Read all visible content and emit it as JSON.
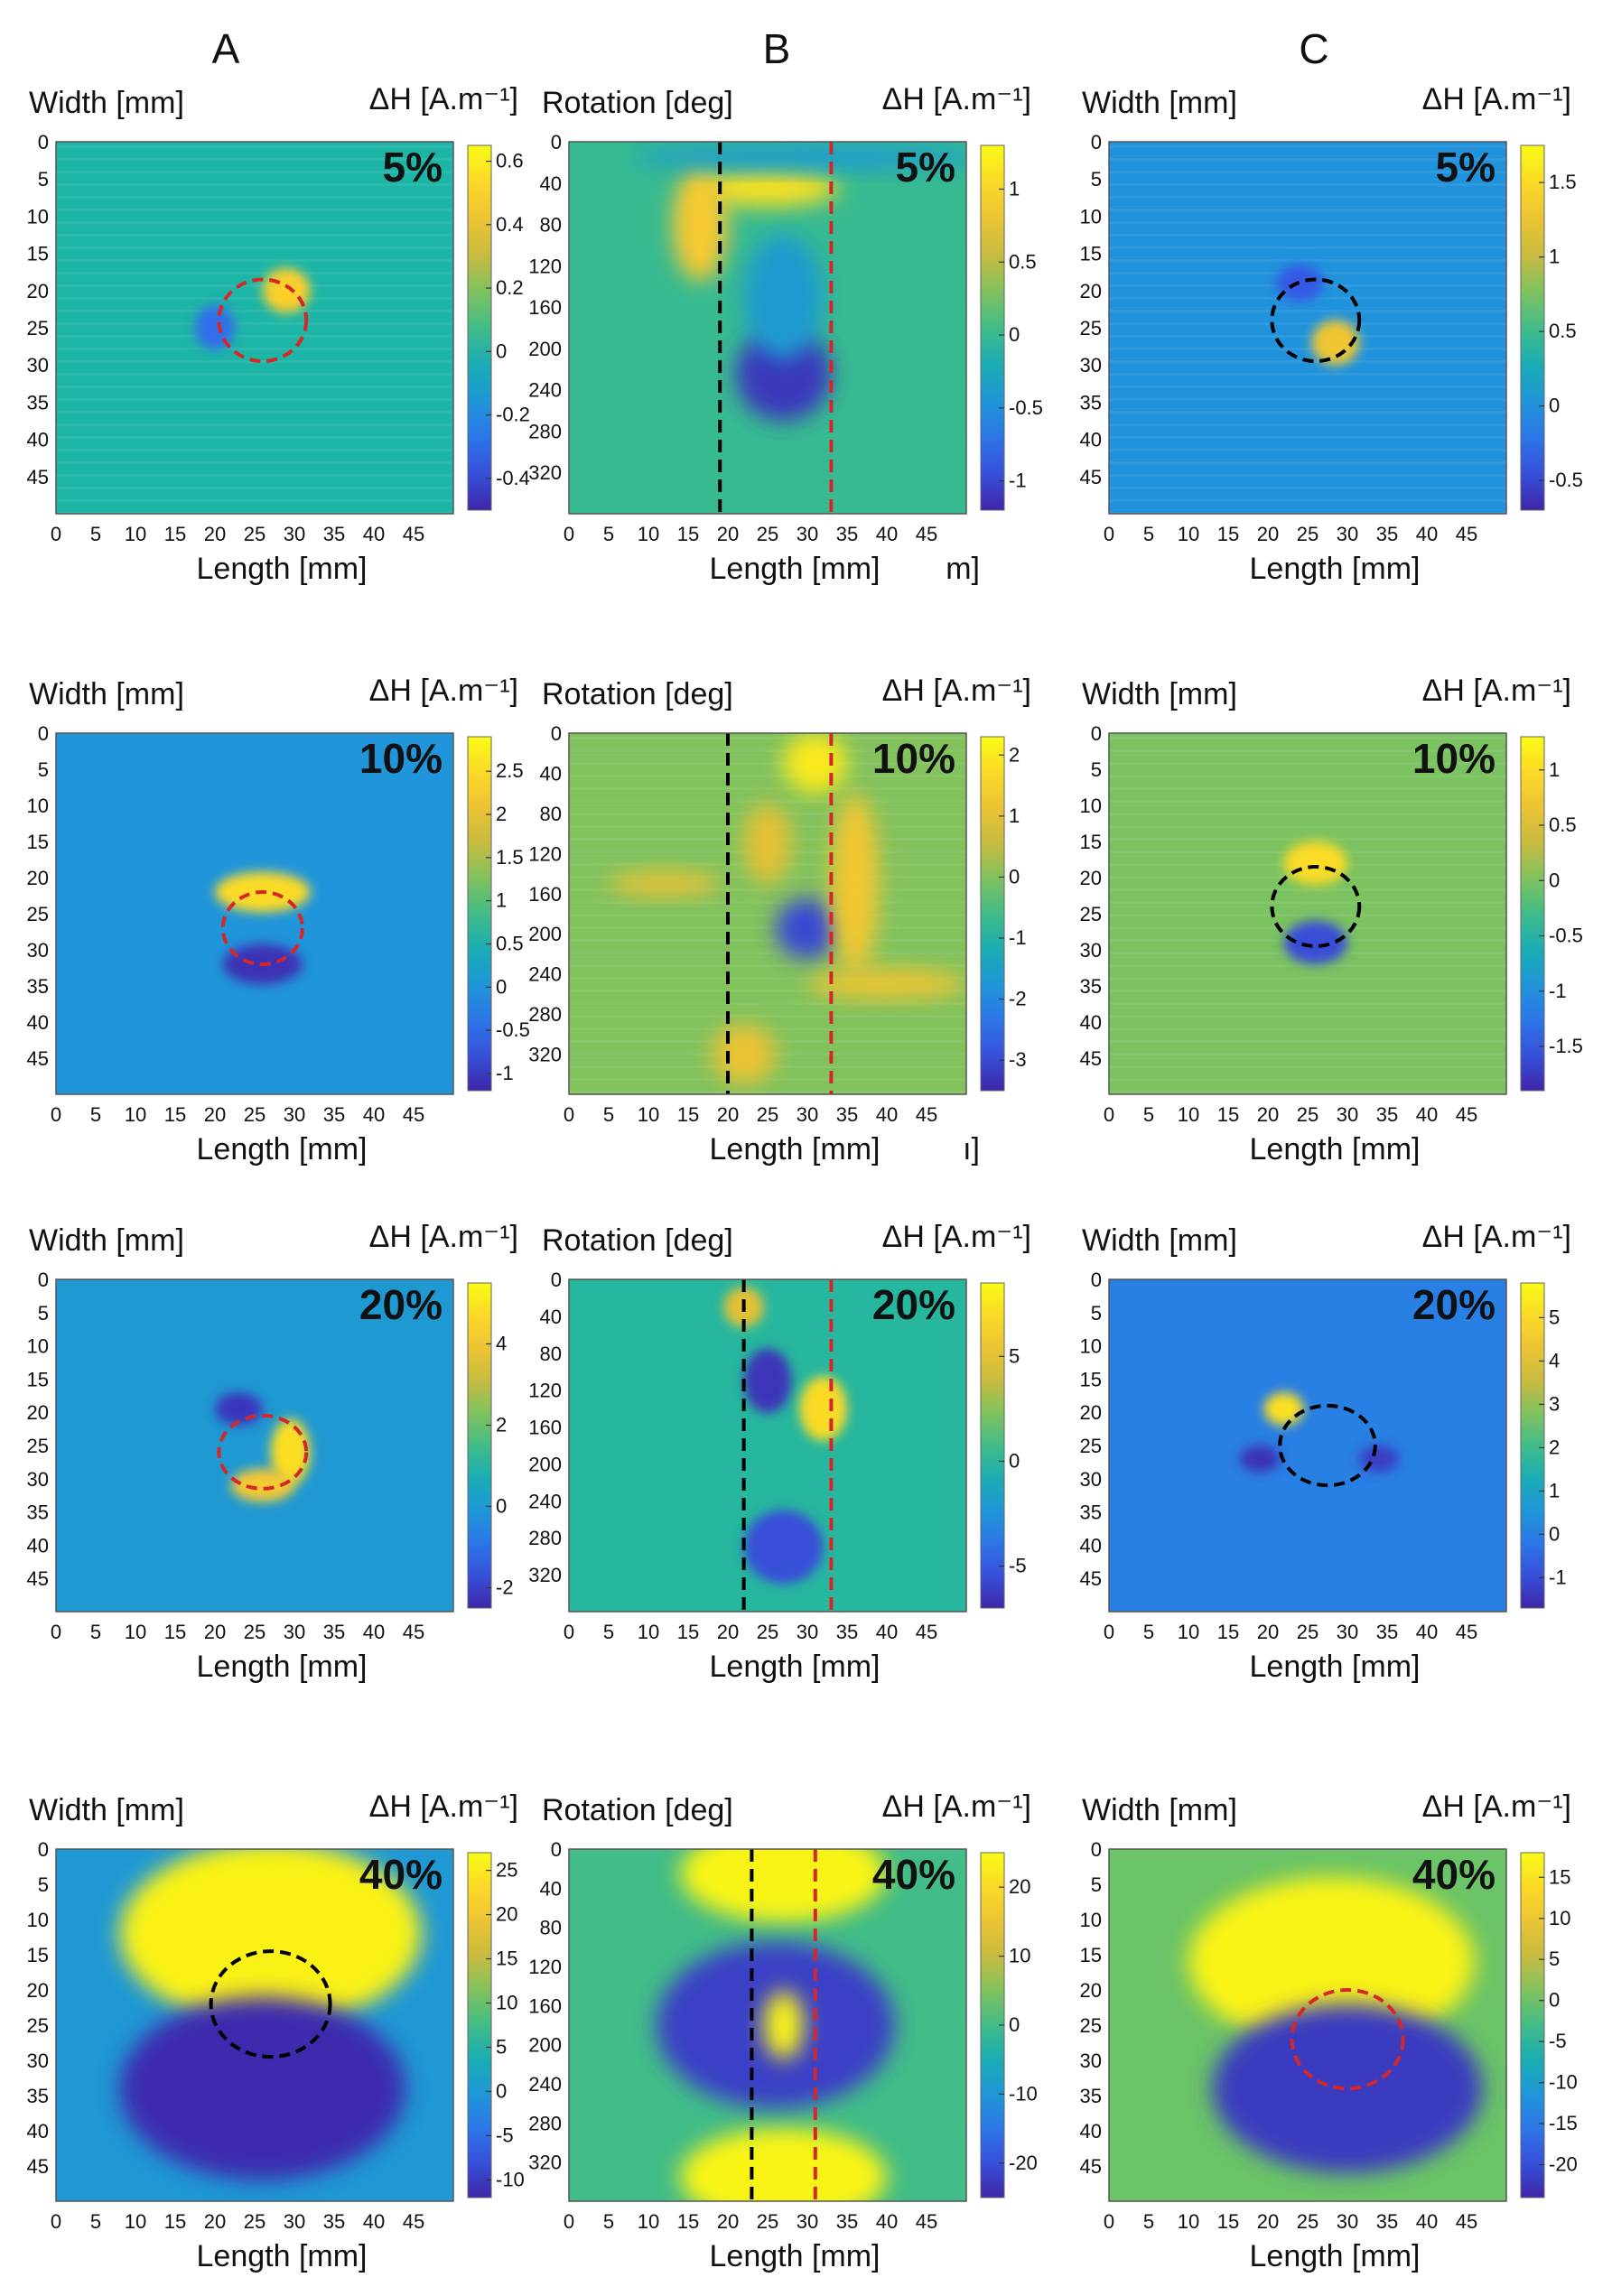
{
  "columns": [
    "A",
    "B",
    "C"
  ],
  "palette": {
    "low": "#3e26a8",
    "mid": "#1fb5a6",
    "high": "#f9fb15",
    "background_teal": "#2bb1a3",
    "circle_red": "#d62728",
    "circle_black": "#000000"
  },
  "chart_data": [
    {
      "type": "heatmap",
      "panel": "A-5%",
      "column": "A",
      "label": "5%",
      "ylabel": "Width [mm]",
      "xlabel": "Length [mm]",
      "cbar_label": "ΔH [A.m⁻¹]",
      "xticks": [
        "0",
        "5",
        "10",
        "15",
        "20",
        "25",
        "30",
        "35",
        "40",
        "45"
      ],
      "yticks": [
        "0",
        "5",
        "10",
        "15",
        "20",
        "25",
        "30",
        "35",
        "40",
        "45"
      ],
      "xlim": [
        0,
        50
      ],
      "ylim": [
        0,
        50
      ],
      "cbar_ticks": [
        "0.6",
        "0.4",
        "0.2",
        "0",
        "-0.2",
        "-0.4"
      ],
      "clim": [
        -0.5,
        0.65
      ],
      "defect_circle": {
        "x": 26,
        "y": 24,
        "r": 5.5,
        "color": "red"
      },
      "stripes": true,
      "blobs": [
        {
          "x": 29,
          "y": 20,
          "rx": 3,
          "ry": 3,
          "value": 0.5
        },
        {
          "x": 20,
          "y": 25,
          "rx": 2.5,
          "ry": 3,
          "value": -0.3
        }
      ]
    },
    {
      "type": "heatmap",
      "panel": "B-5%",
      "column": "B",
      "label": "5%",
      "ylabel": "Rotation [deg]",
      "xlabel": "Length [mm]",
      "xlabel_extra": "m]",
      "cbar_label": "ΔH [A.m⁻¹]",
      "xticks": [
        "0",
        "5",
        "10",
        "15",
        "20",
        "25",
        "30",
        "35",
        "40",
        "45"
      ],
      "yticks": [
        "0",
        "40",
        "80",
        "120",
        "160",
        "200",
        "240",
        "280",
        "320"
      ],
      "xlim": [
        0,
        50
      ],
      "ylim": [
        0,
        360
      ],
      "cbar_ticks": [
        "1",
        "0.5",
        "0",
        "-0.5",
        "-1"
      ],
      "clim": [
        -1.2,
        1.3
      ],
      "vlines": [
        {
          "x": 19,
          "color": "black"
        },
        {
          "x": 33,
          "color": "red"
        }
      ],
      "blobs": [
        {
          "x": 25,
          "y": 45,
          "rx": 9,
          "ry": 18,
          "value": 1.1
        },
        {
          "x": 16.5,
          "y": 80,
          "rx": 3.5,
          "ry": 55,
          "value": 0.9
        },
        {
          "x": 27,
          "y": 225,
          "rx": 6,
          "ry": 45,
          "value": -1.1
        },
        {
          "x": 27,
          "y": 150,
          "rx": 5,
          "ry": 60,
          "value": -0.4
        },
        {
          "x": 30,
          "y": 15,
          "rx": 22,
          "ry": 12,
          "value": -0.4
        }
      ]
    },
    {
      "type": "heatmap",
      "panel": "C-5%",
      "column": "C",
      "label": "5%",
      "ylabel": "Width [mm]",
      "xlabel": "Length [mm]",
      "cbar_label": "ΔH [A.m⁻¹]",
      "xticks": [
        "0",
        "5",
        "10",
        "15",
        "20",
        "25",
        "30",
        "35",
        "40",
        "45"
      ],
      "yticks": [
        "0",
        "5",
        "10",
        "15",
        "20",
        "25",
        "30",
        "35",
        "40",
        "45"
      ],
      "xlim": [
        0,
        50
      ],
      "ylim": [
        0,
        50
      ],
      "cbar_ticks": [
        "1.5",
        "1",
        "0.5",
        "0",
        "-0.5"
      ],
      "clim": [
        -0.7,
        1.75
      ],
      "defect_circle": {
        "x": 26,
        "y": 24,
        "r": 5.5,
        "color": "black"
      },
      "stripes": true,
      "blobs": [
        {
          "x": 28.5,
          "y": 27,
          "rx": 3,
          "ry": 3,
          "value": 1.3
        },
        {
          "x": 24,
          "y": 19,
          "rx": 3,
          "ry": 2.5,
          "value": -0.4
        }
      ]
    },
    {
      "type": "heatmap",
      "panel": "A-10%",
      "column": "A",
      "label": "10%",
      "ylabel": "Width [mm]",
      "xlabel": "Length [mm]",
      "cbar_label": "ΔH [A.m⁻¹]",
      "xticks": [
        "0",
        "5",
        "10",
        "15",
        "20",
        "25",
        "30",
        "35",
        "40",
        "45"
      ],
      "yticks": [
        "0",
        "5",
        "10",
        "15",
        "20",
        "25",
        "30",
        "35",
        "40",
        "45"
      ],
      "xlim": [
        0,
        50
      ],
      "ylim": [
        0,
        50
      ],
      "cbar_ticks": [
        "2.5",
        "2",
        "1.5",
        "1",
        "0.5",
        "0",
        "-0.5",
        "-1"
      ],
      "clim": [
        -1.2,
        2.9
      ],
      "defect_circle": {
        "x": 26,
        "y": 27,
        "r": 5,
        "color": "red"
      },
      "blobs": [
        {
          "x": 26,
          "y": 22,
          "rx": 6,
          "ry": 2.8,
          "value": 2.5
        },
        {
          "x": 26,
          "y": 32,
          "rx": 5,
          "ry": 2.8,
          "value": -1.1
        }
      ]
    },
    {
      "type": "heatmap",
      "panel": "B-10%",
      "column": "B",
      "label": "10%",
      "ylabel": "Rotation [deg]",
      "xlabel": "Length [mm]",
      "xlabel_extra": "ı]",
      "cbar_label": "ΔH [A.m⁻¹]",
      "xticks": [
        "0",
        "5",
        "10",
        "15",
        "20",
        "25",
        "30",
        "35",
        "40",
        "45"
      ],
      "yticks": [
        "0",
        "40",
        "80",
        "120",
        "160",
        "200",
        "240",
        "280",
        "320"
      ],
      "xlim": [
        0,
        50
      ],
      "ylim": [
        0,
        360
      ],
      "cbar_ticks": [
        "2",
        "1",
        "0",
        "-1",
        "-2",
        "-3"
      ],
      "clim": [
        -3.5,
        2.3
      ],
      "vlines": [
        {
          "x": 20,
          "color": "black"
        },
        {
          "x": 33,
          "color": "red"
        }
      ],
      "stripes": true,
      "blobs": [
        {
          "x": 31,
          "y": 30,
          "rx": 4,
          "ry": 30,
          "value": 2.0
        },
        {
          "x": 30,
          "y": 195,
          "rx": 4,
          "ry": 30,
          "value": -3.0
        },
        {
          "x": 36,
          "y": 150,
          "rx": 3,
          "ry": 90,
          "value": 1.3
        },
        {
          "x": 25,
          "y": 110,
          "rx": 3,
          "ry": 40,
          "value": 1.0
        },
        {
          "x": 12,
          "y": 150,
          "rx": 7,
          "ry": 12,
          "value": 1.1
        },
        {
          "x": 40,
          "y": 250,
          "rx": 10,
          "ry": 15,
          "value": 1.2
        },
        {
          "x": 22,
          "y": 320,
          "rx": 4,
          "ry": 30,
          "value": 1.1
        }
      ]
    },
    {
      "type": "heatmap",
      "panel": "C-10%",
      "column": "C",
      "label": "10%",
      "ylabel": "Width [mm]",
      "xlabel": "Length [mm]",
      "cbar_label": "ΔH [A.m⁻¹]",
      "xticks": [
        "0",
        "5",
        "10",
        "15",
        "20",
        "25",
        "30",
        "35",
        "40",
        "45"
      ],
      "yticks": [
        "0",
        "5",
        "10",
        "15",
        "20",
        "25",
        "30",
        "35",
        "40",
        "45"
      ],
      "xlim": [
        0,
        50
      ],
      "ylim": [
        0,
        50
      ],
      "cbar_ticks": [
        "1",
        "0.5",
        "0",
        "-0.5",
        "-1",
        "-1.5"
      ],
      "clim": [
        -1.9,
        1.3
      ],
      "defect_circle": {
        "x": 26,
        "y": 24,
        "r": 5.5,
        "color": "black"
      },
      "stripes": true,
      "blobs": [
        {
          "x": 26,
          "y": 18,
          "rx": 4,
          "ry": 3,
          "value": 1.0
        },
        {
          "x": 26,
          "y": 29,
          "rx": 4,
          "ry": 3,
          "value": -1.6
        }
      ]
    },
    {
      "type": "heatmap",
      "panel": "A-20%",
      "column": "A",
      "label": "20%",
      "ylabel": "Width [mm]",
      "xlabel": "Length [mm]",
      "cbar_label": "ΔH [A.m⁻¹]",
      "xticks": [
        "0",
        "5",
        "10",
        "15",
        "20",
        "25",
        "30",
        "35",
        "40",
        "45"
      ],
      "yticks": [
        "0",
        "5",
        "10",
        "15",
        "20",
        "25",
        "30",
        "35",
        "40",
        "45"
      ],
      "xlim": [
        0,
        50
      ],
      "ylim": [
        0,
        50
      ],
      "cbar_ticks": [
        "4",
        "2",
        "0",
        "-2"
      ],
      "clim": [
        -2.5,
        5.5
      ],
      "defect_circle": {
        "x": 26,
        "y": 26,
        "r": 5.5,
        "color": "red"
      },
      "blobs": [
        {
          "x": 29.5,
          "y": 26,
          "rx": 2.5,
          "ry": 5,
          "value": 4.8
        },
        {
          "x": 26,
          "y": 31,
          "rx": 4,
          "ry": 2.5,
          "value": 4.2
        },
        {
          "x": 23,
          "y": 19.5,
          "rx": 3,
          "ry": 2.5,
          "value": -2.2
        }
      ]
    },
    {
      "type": "heatmap",
      "panel": "B-20%",
      "column": "B",
      "label": "20%",
      "ylabel": "Rotation [deg]",
      "xlabel": "Length [mm]",
      "cbar_label": "ΔH [A.m⁻¹]",
      "xticks": [
        "0",
        "5",
        "10",
        "15",
        "20",
        "25",
        "30",
        "35",
        "40",
        "45"
      ],
      "yticks": [
        "0",
        "40",
        "80",
        "120",
        "160",
        "200",
        "240",
        "280",
        "320"
      ],
      "xlim": [
        0,
        50
      ],
      "ylim": [
        0,
        360
      ],
      "cbar_ticks": [
        "5",
        "0",
        "-5"
      ],
      "clim": [
        -7,
        8.5
      ],
      "vlines": [
        {
          "x": 22,
          "color": "black"
        },
        {
          "x": 33,
          "color": "red"
        }
      ],
      "blobs": [
        {
          "x": 22,
          "y": 30,
          "rx": 2.5,
          "ry": 22,
          "value": 5
        },
        {
          "x": 25,
          "y": 110,
          "rx": 3,
          "ry": 35,
          "value": -6.5
        },
        {
          "x": 32,
          "y": 140,
          "rx": 3,
          "ry": 35,
          "value": 7
        },
        {
          "x": 27,
          "y": 290,
          "rx": 5,
          "ry": 40,
          "value": -5.5
        }
      ]
    },
    {
      "type": "heatmap",
      "panel": "C-20%",
      "column": "C",
      "label": "20%",
      "ylabel": "Width [mm]",
      "xlabel": "Length [mm]",
      "cbar_label": "ΔH [A.m⁻¹]",
      "xticks": [
        "0",
        "5",
        "10",
        "15",
        "20",
        "25",
        "30",
        "35",
        "40",
        "45"
      ],
      "yticks": [
        "0",
        "5",
        "10",
        "15",
        "20",
        "25",
        "30",
        "35",
        "40",
        "45"
      ],
      "xlim": [
        0,
        50
      ],
      "ylim": [
        0,
        50
      ],
      "cbar_ticks": [
        "5",
        "4",
        "3",
        "2",
        "1",
        "0",
        "-1"
      ],
      "clim": [
        -1.7,
        5.8
      ],
      "defect_circle": {
        "x": 27.5,
        "y": 25,
        "r": 6,
        "color": "black"
      },
      "blobs": [
        {
          "x": 22,
          "y": 19.5,
          "rx": 2.5,
          "ry": 2.5,
          "value": 5.2
        },
        {
          "x": 19,
          "y": 27,
          "rx": 2.5,
          "ry": 2,
          "value": -1.5
        },
        {
          "x": 34,
          "y": 27,
          "rx": 2.5,
          "ry": 2,
          "value": -1.3
        }
      ]
    },
    {
      "type": "heatmap",
      "panel": "A-40%",
      "column": "A",
      "label": "40%",
      "ylabel": "Width [mm]",
      "xlabel": "Length [mm]",
      "cbar_label": "ΔH [A.m⁻¹]",
      "xticks": [
        "0",
        "5",
        "10",
        "15",
        "20",
        "25",
        "30",
        "35",
        "40",
        "45"
      ],
      "yticks": [
        "0",
        "5",
        "10",
        "15",
        "20",
        "25",
        "30",
        "35",
        "40",
        "45"
      ],
      "xlim": [
        0,
        50
      ],
      "ylim": [
        0,
        50
      ],
      "cbar_ticks": [
        "25",
        "20",
        "15",
        "10",
        "5",
        "0",
        "-5",
        "-10"
      ],
      "clim": [
        -12,
        27
      ],
      "defect_circle": {
        "x": 27,
        "y": 22,
        "r": 7.5,
        "color": "black"
      },
      "blobs": [
        {
          "x": 27,
          "y": 12,
          "rx": 19,
          "ry": 13,
          "value": 26
        },
        {
          "x": 26,
          "y": 34,
          "rx": 18,
          "ry": 13,
          "value": -11.5
        }
      ]
    },
    {
      "type": "heatmap",
      "panel": "B-40%",
      "column": "B",
      "label": "40%",
      "ylabel": "Rotation [deg]",
      "xlabel": "Length [mm]",
      "cbar_label": "ΔH [A.m⁻¹]",
      "xticks": [
        "0",
        "5",
        "10",
        "15",
        "20",
        "25",
        "30",
        "35",
        "40",
        "45"
      ],
      "yticks": [
        "0",
        "40",
        "80",
        "120",
        "160",
        "200",
        "240",
        "280",
        "320"
      ],
      "xlim": [
        0,
        50
      ],
      "ylim": [
        0,
        360
      ],
      "cbar_ticks": [
        "20",
        "10",
        "0",
        "-10",
        "-20"
      ],
      "clim": [
        -25,
        25
      ],
      "vlines": [
        {
          "x": 23,
          "color": "black"
        },
        {
          "x": 31,
          "color": "red"
        }
      ],
      "blobs": [
        {
          "x": 27,
          "y": 25,
          "rx": 13,
          "ry": 50,
          "value": 24
        },
        {
          "x": 27,
          "y": 335,
          "rx": 13,
          "ry": 50,
          "value": 24
        },
        {
          "x": 26,
          "y": 180,
          "rx": 15,
          "ry": 85,
          "value": -22
        },
        {
          "x": 27,
          "y": 180,
          "rx": 2.5,
          "ry": 35,
          "value": 24
        }
      ]
    },
    {
      "type": "heatmap",
      "panel": "C-40%",
      "column": "C",
      "label": "40%",
      "ylabel": "Width [mm]",
      "xlabel": "Length [mm]",
      "cbar_label": "ΔH [A.m⁻¹]",
      "xticks": [
        "0",
        "5",
        "10",
        "15",
        "20",
        "25",
        "30",
        "35",
        "40",
        "45"
      ],
      "yticks": [
        "0",
        "5",
        "10",
        "15",
        "20",
        "25",
        "30",
        "35",
        "40",
        "45"
      ],
      "xlim": [
        0,
        50
      ],
      "ylim": [
        0,
        50
      ],
      "cbar_ticks": [
        "15",
        "10",
        "5",
        "0",
        "-5",
        "-10",
        "-15",
        "-20"
      ],
      "clim": [
        -24,
        18
      ],
      "defect_circle": {
        "x": 30,
        "y": 27,
        "r": 7,
        "color": "red"
      },
      "blobs": [
        {
          "x": 28,
          "y": 16,
          "rx": 18,
          "ry": 12,
          "value": 17
        },
        {
          "x": 30,
          "y": 34,
          "rx": 17,
          "ry": 12,
          "value": -22
        }
      ]
    }
  ]
}
